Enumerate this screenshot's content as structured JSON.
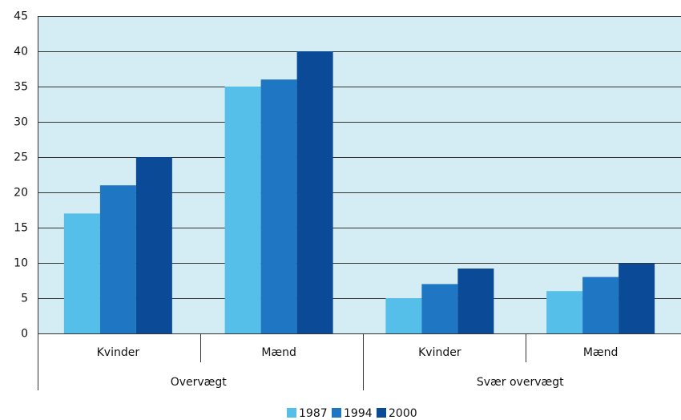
{
  "chart_data": {
    "type": "bar",
    "groups": [
      {
        "name": "Overvægt",
        "categories": [
          "Kvinder",
          "Mænd"
        ]
      },
      {
        "name": "Svær overvægt",
        "categories": [
          "Kvinder",
          "Mænd"
        ]
      }
    ],
    "series": [
      {
        "name": "1987",
        "color": "#55bfea",
        "values": [
          17,
          35,
          5,
          6
        ]
      },
      {
        "name": "1994",
        "color": "#1f77c4",
        "values": [
          21,
          36,
          7,
          8
        ]
      },
      {
        "name": "2000",
        "color": "#0a4a96",
        "values": [
          25,
          40,
          9.2,
          9.9
        ]
      }
    ],
    "ylim": [
      0,
      45
    ],
    "yticks": [
      0,
      5,
      10,
      15,
      20,
      25,
      30,
      35,
      40,
      45
    ],
    "grid": true
  }
}
